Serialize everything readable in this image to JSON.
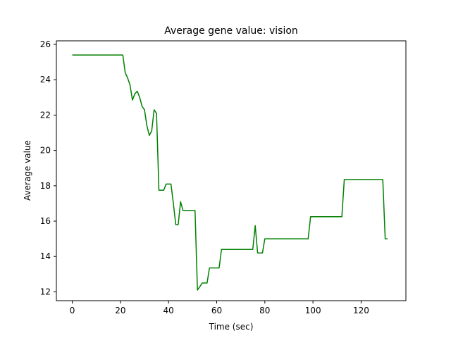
{
  "chart_data": {
    "type": "line",
    "title": "Average gene value: vision",
    "xlabel": "Time (sec)",
    "ylabel": "Average value",
    "xlim": [
      -6.6,
      138.6
    ],
    "ylim": [
      11.5,
      26.2
    ],
    "xticks": [
      0,
      20,
      40,
      60,
      80,
      100,
      120
    ],
    "yticks": [
      12,
      14,
      16,
      18,
      20,
      22,
      24,
      26
    ],
    "grid": false,
    "series": [
      {
        "name": "vision",
        "color": "#008000",
        "x": [
          0,
          21,
          22,
          23,
          24,
          25,
          26,
          27,
          28,
          29,
          30,
          31,
          32,
          33,
          34,
          35,
          36,
          37,
          38,
          39,
          40,
          41,
          42,
          43,
          44,
          45,
          46,
          47,
          48,
          49,
          50,
          51,
          52,
          53,
          54,
          55,
          56,
          57,
          58,
          59,
          60,
          61,
          62,
          63,
          64,
          70,
          75,
          76,
          77,
          78,
          79,
          80,
          90,
          97,
          98,
          99,
          110,
          111,
          112,
          113,
          120,
          128,
          129,
          130,
          131
        ],
        "y": [
          25.4,
          25.4,
          24.4,
          24.1,
          23.7,
          22.85,
          23.2,
          23.35,
          23.0,
          22.5,
          22.3,
          21.4,
          20.85,
          21.1,
          22.3,
          22.1,
          17.75,
          17.75,
          17.75,
          18.1,
          18.1,
          18.1,
          17.0,
          15.8,
          15.8,
          17.1,
          16.6,
          16.6,
          16.6,
          16.6,
          16.6,
          16.6,
          12.1,
          12.3,
          12.5,
          12.5,
          12.5,
          13.35,
          13.35,
          13.35,
          13.35,
          13.35,
          14.4,
          14.4,
          14.4,
          14.4,
          14.4,
          15.75,
          14.2,
          14.2,
          14.2,
          15.0,
          15.0,
          15.0,
          15.0,
          16.25,
          16.25,
          16.25,
          16.25,
          18.35,
          18.35,
          18.35,
          18.35,
          15.0,
          15.0
        ]
      }
    ]
  }
}
